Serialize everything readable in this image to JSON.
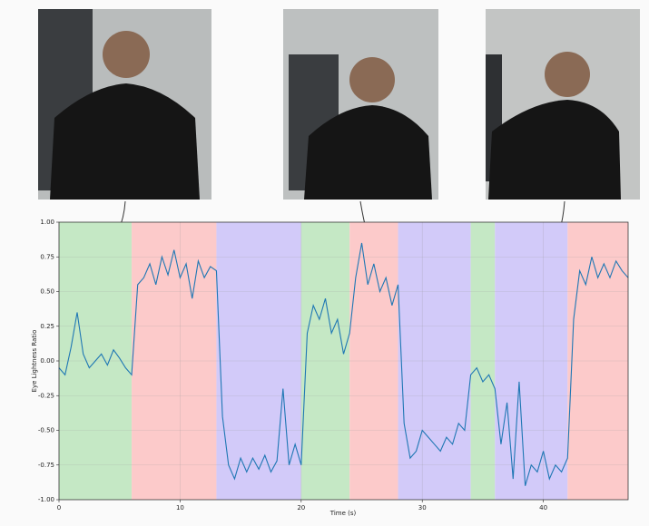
{
  "chart_data": {
    "type": "line",
    "xlabel": "Time (s)",
    "ylabel": "Eye Lightness Ratio",
    "xlim": [
      0,
      47
    ],
    "ylim": [
      -1,
      1
    ],
    "xticks": [
      0,
      10,
      20,
      30,
      40
    ],
    "yticks": [
      {
        "value": -1,
        "label": "-1.00"
      },
      {
        "value": -0.75,
        "label": "-0.75"
      },
      {
        "value": -0.5,
        "label": "-0.50"
      },
      {
        "value": -0.25,
        "label": "-0.25"
      },
      {
        "value": 0,
        "label": "0.00"
      },
      {
        "value": 0.25,
        "label": "0.25"
      },
      {
        "value": 0.5,
        "label": "0.50"
      },
      {
        "value": 0.75,
        "label": "0.75"
      },
      {
        "value": 1,
        "label": "1.00"
      }
    ],
    "grid": true,
    "color": "#1f77b4",
    "spans": [
      {
        "start": 0,
        "end": 6,
        "color": "#bfe6bf"
      },
      {
        "start": 6,
        "end": 13,
        "color": "#fcc4c4"
      },
      {
        "start": 13,
        "end": 20,
        "color": "#cdc4f8"
      },
      {
        "start": 20,
        "end": 24,
        "color": "#bfe6bf"
      },
      {
        "start": 24,
        "end": 28,
        "color": "#fcc4c4"
      },
      {
        "start": 28,
        "end": 34,
        "color": "#cdc4f8"
      },
      {
        "start": 34,
        "end": 36,
        "color": "#bfe6bf"
      },
      {
        "start": 36,
        "end": 42,
        "color": "#cdc4f8"
      },
      {
        "start": 42,
        "end": 47,
        "color": "#fcc4c4"
      }
    ],
    "x": [
      0,
      0.5,
      1,
      1.5,
      2,
      2.5,
      3,
      3.5,
      4,
      4.5,
      5,
      5.5,
      6,
      6.5,
      7,
      7.5,
      8,
      8.5,
      9,
      9.5,
      10,
      10.5,
      11,
      11.5,
      12,
      12.5,
      13,
      13.5,
      14,
      14.5,
      15,
      15.5,
      16,
      16.5,
      17,
      17.5,
      18,
      18.5,
      19,
      19.5,
      20,
      20.5,
      21,
      21.5,
      22,
      22.5,
      23,
      23.5,
      24,
      24.5,
      25,
      25.5,
      26,
      26.5,
      27,
      27.5,
      28,
      28.5,
      29,
      29.5,
      30,
      30.5,
      31,
      31.5,
      32,
      32.5,
      33,
      33.5,
      34,
      34.5,
      35,
      35.5,
      36,
      36.5,
      37,
      37.5,
      38,
      38.5,
      39,
      39.5,
      40,
      40.5,
      41,
      41.5,
      42,
      42.5,
      43,
      43.5,
      44,
      44.5,
      45,
      45.5,
      46,
      46.5,
      47
    ],
    "values": [
      -0.05,
      -0.1,
      0.1,
      0.35,
      0.05,
      -0.05,
      0.0,
      0.05,
      -0.03,
      0.08,
      0.02,
      -0.05,
      -0.1,
      0.55,
      0.6,
      0.7,
      0.55,
      0.75,
      0.62,
      0.8,
      0.6,
      0.7,
      0.45,
      0.72,
      0.6,
      0.68,
      0.65,
      -0.4,
      -0.75,
      -0.85,
      -0.7,
      -0.8,
      -0.7,
      -0.78,
      -0.68,
      -0.8,
      -0.72,
      -0.2,
      -0.75,
      -0.6,
      -0.75,
      0.2,
      0.4,
      0.3,
      0.45,
      0.2,
      0.3,
      0.05,
      0.2,
      0.6,
      0.85,
      0.55,
      0.7,
      0.5,
      0.6,
      0.4,
      0.55,
      -0.45,
      -0.7,
      -0.65,
      -0.5,
      -0.55,
      -0.6,
      -0.65,
      -0.55,
      -0.6,
      -0.45,
      -0.5,
      -0.1,
      -0.05,
      -0.15,
      -0.1,
      -0.2,
      -0.6,
      -0.3,
      -0.85,
      -0.15,
      -0.9,
      -0.75,
      -0.8,
      -0.65,
      -0.85,
      -0.75,
      -0.8,
      -0.7,
      0.3,
      0.65,
      0.55,
      0.75,
      0.6,
      0.7,
      0.6,
      0.72,
      0.65,
      0.6
    ]
  }
}
